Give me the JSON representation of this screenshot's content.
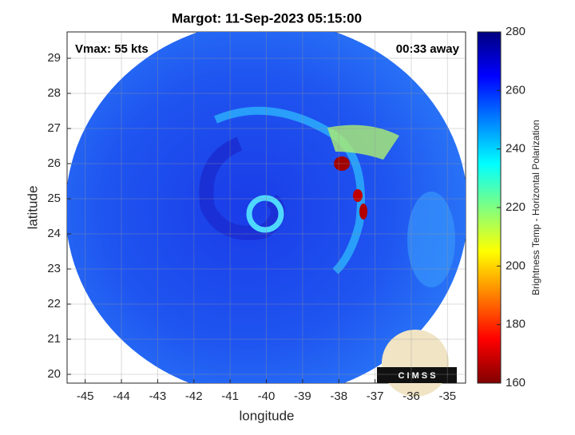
{
  "chart_data": {
    "type": "image",
    "title": "Margot: 11-Sep-2023 05:15:00",
    "xlabel": "longitude",
    "ylabel": "latitude",
    "annotations": [
      "Vmax: 55 kts",
      "00:33 away"
    ],
    "logo_text": "C I M S S",
    "xlim": [
      -45.5,
      -34.5
    ],
    "xticks": [
      -45,
      -44,
      -43,
      -42,
      -41,
      -40,
      -39,
      -38,
      -37,
      -36,
      -35
    ],
    "ylim": [
      19.75,
      29.75
    ],
    "yticks": [
      20,
      21,
      22,
      23,
      24,
      25,
      26,
      27,
      28,
      29
    ],
    "grid": true,
    "colorbar": {
      "label": "Brightness Temp - Horizontal Polarization",
      "lim": [
        160,
        280
      ],
      "ticks": [
        160,
        180,
        200,
        220,
        240,
        260,
        280
      ],
      "colormap": "jet"
    }
  }
}
